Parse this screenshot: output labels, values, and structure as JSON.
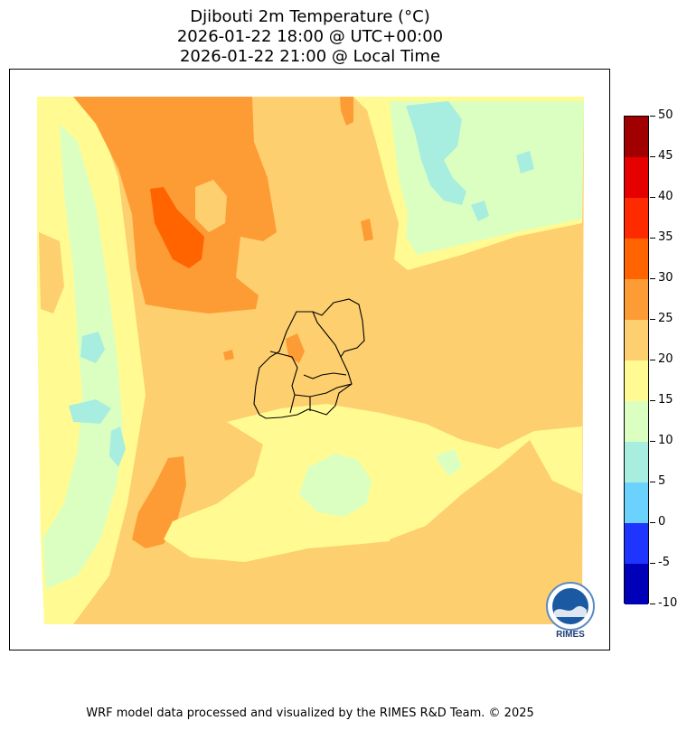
{
  "title": {
    "line1": "Djibouti 2m Temperature (°C)",
    "line2": "2026-01-22 18:00 @ UTC+00:00",
    "line3": "2026-01-22 21:00 @ Local Time"
  },
  "colorbar": {
    "unit": "°C",
    "min": -10,
    "max": 50,
    "ticks": [
      "50",
      "45",
      "40",
      "35",
      "30",
      "25",
      "20",
      "15",
      "10",
      "5",
      "0",
      "-5",
      "-10"
    ],
    "bins": [
      {
        "from": 45,
        "to": 50,
        "color": "#a10000"
      },
      {
        "from": 40,
        "to": 45,
        "color": "#e60000"
      },
      {
        "from": 35,
        "to": 40,
        "color": "#ff2b00"
      },
      {
        "from": 30,
        "to": 35,
        "color": "#ff6400"
      },
      {
        "from": 25,
        "to": 30,
        "color": "#fd9c35"
      },
      {
        "from": 20,
        "to": 25,
        "color": "#fdcf6f"
      },
      {
        "from": 15,
        "to": 20,
        "color": "#fffb92"
      },
      {
        "from": 10,
        "to": 15,
        "color": "#dbffc0"
      },
      {
        "from": 5,
        "to": 10,
        "color": "#a7ede0"
      },
      {
        "from": 0,
        "to": 5,
        "color": "#6bd2fd"
      },
      {
        "from": -5,
        "to": 0,
        "color": "#1f35ff"
      },
      {
        "from": -10,
        "to": -5,
        "color": "#0000b8"
      }
    ]
  },
  "map": {
    "region": "Djibouti",
    "palette": {
      "c10": "#a7ede0",
      "c15": "#dbffc0",
      "c20": "#fffb92",
      "c25": "#fdcf6f",
      "c30": "#fd9c35",
      "c35": "#ff6400",
      "border": "#000000"
    }
  },
  "logo": {
    "text": "RIMES"
  },
  "credit": "WRF model data processed and visualized by the RIMES R&D Team. © 2025"
}
